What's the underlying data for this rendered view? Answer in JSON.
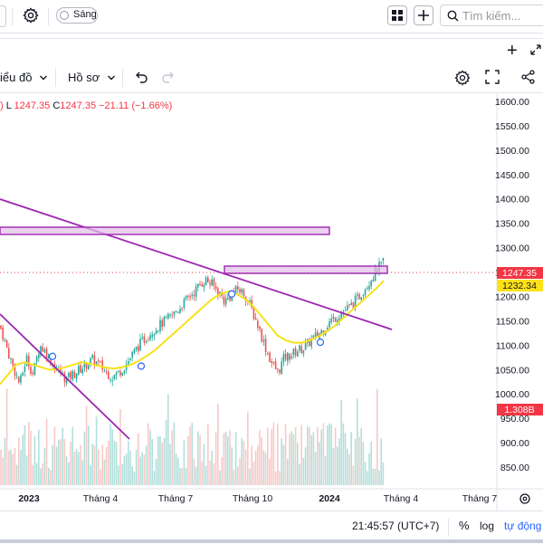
{
  "toolbar_top": {
    "theme_label": "Sáng",
    "search_placeholder": "Tìm kiếm..."
  },
  "chart_toolbar": {
    "chart_type_label": "iểu đồ",
    "profile_label": "Hồ sơ"
  },
  "legend": {
    "low_key": "L",
    "low_value": "1247.35",
    "close_key": "C",
    "close_value": "1247.35",
    "change": "−21.11",
    "change_pct": "(−1.66%)"
  },
  "colors": {
    "up": "#26a69a",
    "down": "#ef5350",
    "ma": "#f5e21b",
    "trendline": "#9c27b0",
    "last_price_bg": "#f23645",
    "ma_label_bg": "#ffe119",
    "volume_label_bg": "#f23645"
  },
  "chart_data": {
    "type": "candlestick",
    "y_axis_ticks": [
      "1600.00",
      "1550.00",
      "1500.00",
      "1450.00",
      "1400.00",
      "1350.00",
      "1300.00",
      "1250.00",
      "1200.00",
      "1150.00",
      "1100.00",
      "1050.00",
      "1000.00",
      "950.00",
      "900.00",
      "850.00"
    ],
    "ylim": [
      820,
      1615
    ],
    "x_axis_ticks": [
      "2023",
      "Tháng 4",
      "Tháng 7",
      "Tháng 10",
      "2024",
      "Tháng 4",
      "Tháng 7"
    ],
    "last_price_label": "1247.35",
    "ma_label": "1232.34",
    "volume_label": "1.308B",
    "price_path": [
      1140,
      1095,
      1055,
      1020,
      1075,
      1040,
      1100,
      1085,
      1060,
      1045,
      1030,
      1040,
      1050,
      1060,
      1070,
      1060,
      1045,
      1035,
      1045,
      1060,
      1080,
      1100,
      1115,
      1130,
      1140,
      1150,
      1160,
      1175,
      1190,
      1205,
      1220,
      1235,
      1225,
      1210,
      1190,
      1205,
      1215,
      1205,
      1175,
      1140,
      1100,
      1065,
      1045,
      1075,
      1080,
      1090,
      1095,
      1110,
      1120,
      1135,
      1150,
      1160,
      1170,
      1180,
      1195,
      1215,
      1235,
      1255,
      1270
    ],
    "ma_path": [
      1020,
      1040,
      1060,
      1065,
      1060,
      1055,
      1050,
      1050,
      1055,
      1060,
      1065,
      1062,
      1058,
      1054,
      1052,
      1055,
      1060,
      1068,
      1078,
      1090,
      1105,
      1120,
      1135,
      1150,
      1165,
      1180,
      1195,
      1205,
      1210,
      1205,
      1195,
      1180,
      1160,
      1140,
      1120,
      1110,
      1105,
      1105,
      1110,
      1118,
      1128,
      1140,
      1155,
      1170,
      1185,
      1200,
      1215,
      1232
    ]
  },
  "footer": {
    "clock": "21:45:57 (UTC+7)",
    "pct": "%",
    "log": "log",
    "auto": "tự động"
  }
}
